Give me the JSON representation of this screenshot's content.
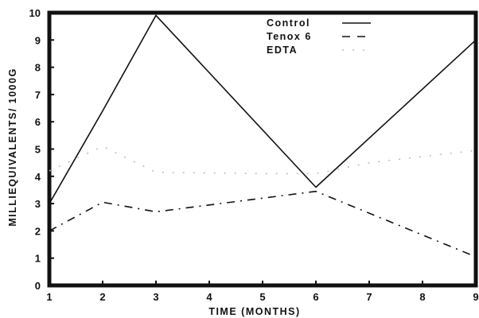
{
  "chart_data": {
    "type": "line",
    "title": "",
    "xlabel": "TIME (MONTHS)",
    "ylabel": "MILLIEQUIVALENTS/ 1000G",
    "xlim": [
      1,
      9
    ],
    "ylim": [
      0,
      10
    ],
    "x_ticks": [
      1,
      2,
      3,
      4,
      5,
      6,
      7,
      8,
      9
    ],
    "y_ticks": [
      0,
      1,
      2,
      3,
      4,
      5,
      6,
      7,
      8,
      9,
      10
    ],
    "grid": false,
    "legend_position": "top-right",
    "series": [
      {
        "name": "Control",
        "style": "solid",
        "color": "#111111",
        "points": [
          [
            1,
            3.0
          ],
          [
            2,
            6.4
          ],
          [
            3,
            9.9
          ],
          [
            6,
            3.6
          ],
          [
            9,
            9.0
          ]
        ]
      },
      {
        "name": "Tenox 6",
        "style": "dashed",
        "color": "#111111",
        "points": [
          [
            1,
            2.0
          ],
          [
            2,
            3.05
          ],
          [
            3,
            2.7
          ],
          [
            6,
            3.45
          ],
          [
            9,
            1.05
          ]
        ]
      },
      {
        "name": "EDTA",
        "style": "dotted",
        "color": "#bbbbbb",
        "points": [
          [
            1,
            4.2
          ],
          [
            2,
            5.1
          ],
          [
            3,
            4.15
          ],
          [
            5,
            4.1
          ],
          [
            6,
            4.1
          ],
          [
            7,
            4.5
          ],
          [
            9,
            4.95
          ]
        ]
      }
    ]
  }
}
